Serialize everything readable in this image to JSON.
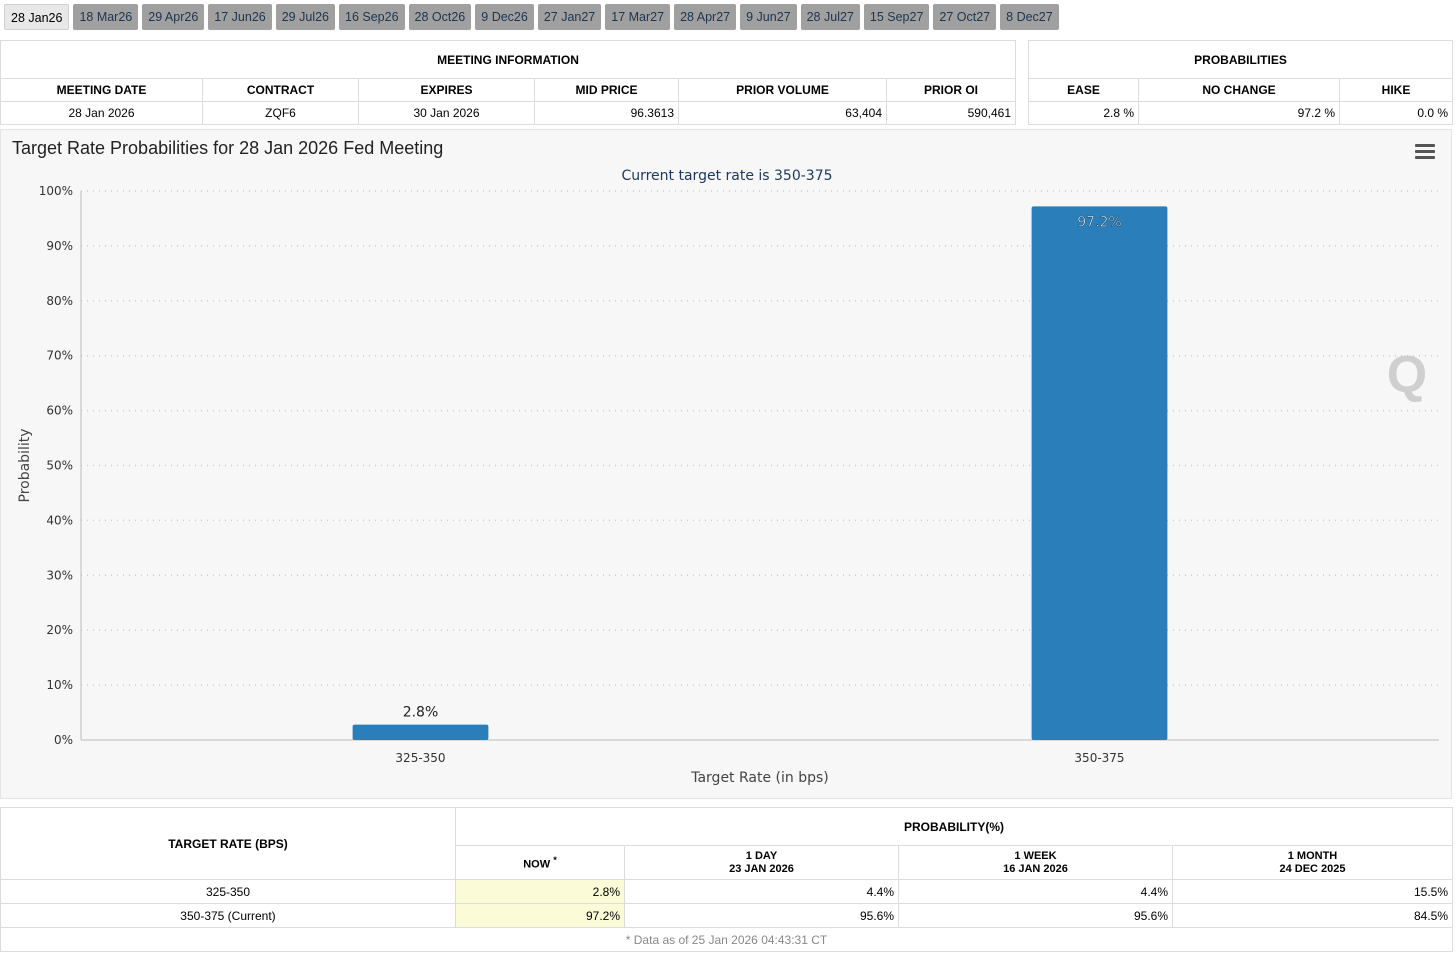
{
  "tabs": [
    "28 Jan26",
    "18 Mar26",
    "29 Apr26",
    "17 Jun26",
    "29 Jul26",
    "16 Sep26",
    "28 Oct26",
    "9 Dec26",
    "27 Jan27",
    "17 Mar27",
    "28 Apr27",
    "9 Jun27",
    "28 Jul27",
    "15 Sep27",
    "27 Oct27",
    "8 Dec27"
  ],
  "active_tab": 0,
  "meeting_info": {
    "header": "MEETING INFORMATION",
    "columns": [
      "MEETING DATE",
      "CONTRACT",
      "EXPIRES",
      "MID PRICE",
      "PRIOR VOLUME",
      "PRIOR OI"
    ],
    "row": [
      "28 Jan 2026",
      "ZQF6",
      "30 Jan 2026",
      "96.3613",
      "63,404",
      "590,461"
    ]
  },
  "probabilities": {
    "header": "PROBABILITIES",
    "columns": [
      "EASE",
      "NO CHANGE",
      "HIKE"
    ],
    "row": [
      "2.8 %",
      "97.2 %",
      "0.0 %"
    ]
  },
  "chart_data": {
    "type": "bar",
    "title": "Target Rate Probabilities for 28 Jan 2026 Fed Meeting",
    "subtitle": "Current target rate is 350-375",
    "xlabel": "Target Rate (in bps)",
    "ylabel": "Probability",
    "categories": [
      "325-350",
      "350-375"
    ],
    "values": [
      2.8,
      97.2
    ],
    "data_labels": [
      "2.8%",
      "97.2%"
    ],
    "ylim": [
      0,
      100
    ],
    "yticks": [
      0,
      10,
      20,
      30,
      40,
      50,
      60,
      70,
      80,
      90,
      100
    ],
    "ytick_labels": [
      "0%",
      "10%",
      "20%",
      "30%",
      "40%",
      "50%",
      "60%",
      "70%",
      "80%",
      "90%",
      "100%"
    ],
    "grid": true,
    "bar_color": "#2a7fba"
  },
  "history": {
    "rate_header": "TARGET RATE (BPS)",
    "prob_header": "PROBABILITY(%)",
    "now_label": "NOW",
    "now_marker": "*",
    "periods": [
      {
        "line1": "1 DAY",
        "line2": "23 JAN 2026"
      },
      {
        "line1": "1 WEEK",
        "line2": "16 JAN 2026"
      },
      {
        "line1": "1 MONTH",
        "line2": "24 DEC 2025"
      }
    ],
    "rows": [
      {
        "rate": "325-350",
        "now": "2.8%",
        "values": [
          "4.4%",
          "4.4%",
          "15.5%"
        ]
      },
      {
        "rate": "350-375 (Current)",
        "now": "97.2%",
        "values": [
          "95.6%",
          "95.6%",
          "84.5%"
        ]
      }
    ],
    "footnote": "* Data as of 25 Jan 2026 04:43:31 CT"
  },
  "watermark_letter": "Q"
}
